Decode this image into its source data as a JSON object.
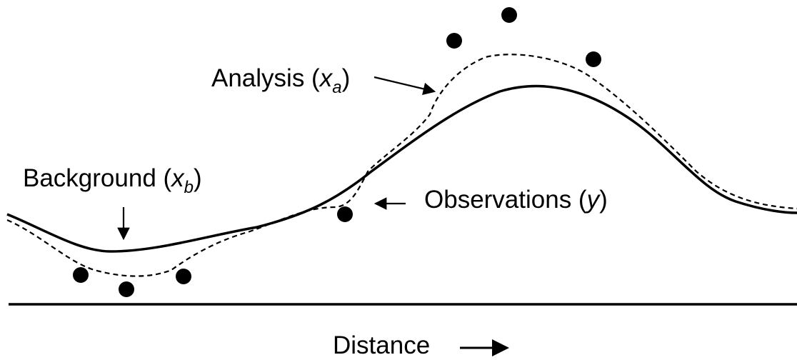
{
  "labels": {
    "analysis": {
      "name": "Analysis (",
      "sym": "x",
      "sub": "a",
      "close": ")"
    },
    "background": {
      "name": "Background (",
      "sym": "x",
      "sub": "b",
      "close": ")"
    },
    "observations": {
      "name": "Observations (",
      "sym": "y",
      "close": ")"
    },
    "axis": "Distance"
  },
  "legend_items": [
    "analysis",
    "background",
    "observations"
  ],
  "colors": {
    "ink": "#000000",
    "paper": "#ffffff"
  }
}
